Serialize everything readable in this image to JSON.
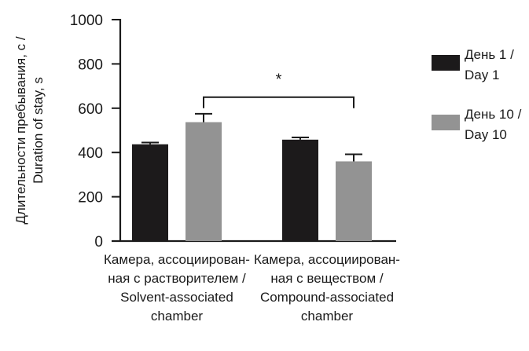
{
  "chart_data": {
    "type": "bar",
    "title": "",
    "ylabel_lines": [
      "Длительности пребывания, с /",
      "Duration of stay, s"
    ],
    "xlabel": "",
    "ylim": [
      0,
      1000
    ],
    "yticks": [
      0,
      200,
      400,
      600,
      800,
      1000
    ],
    "ytick_labels": [
      "0",
      "200",
      "400",
      "600",
      "800",
      "1000"
    ],
    "grid": false,
    "legend_position": "right",
    "categories": [
      {
        "label_lines": [
          "Камера, ассоциирован-",
          "ная с растворителем /",
          "Solvent-associated",
          "chamber"
        ]
      },
      {
        "label_lines": [
          "Камера, ассоциирован-",
          "ная с веществом /",
          "Compound-associated",
          "chamber"
        ]
      }
    ],
    "series": [
      {
        "name_lines": [
          "День 1 /",
          "Day 1"
        ],
        "color": "#1c1a1b",
        "values": [
          437,
          458
        ],
        "errors": [
          8,
          10
        ]
      },
      {
        "name_lines": [
          "День 10 /",
          "Day 10"
        ],
        "color": "#939393",
        "values": [
          537,
          360
        ],
        "errors": [
          38,
          32
        ]
      }
    ],
    "significance": [
      {
        "from": {
          "series": 1,
          "category": 0
        },
        "to": {
          "series": 1,
          "category": 1
        },
        "level": 650,
        "label": "*"
      }
    ]
  }
}
